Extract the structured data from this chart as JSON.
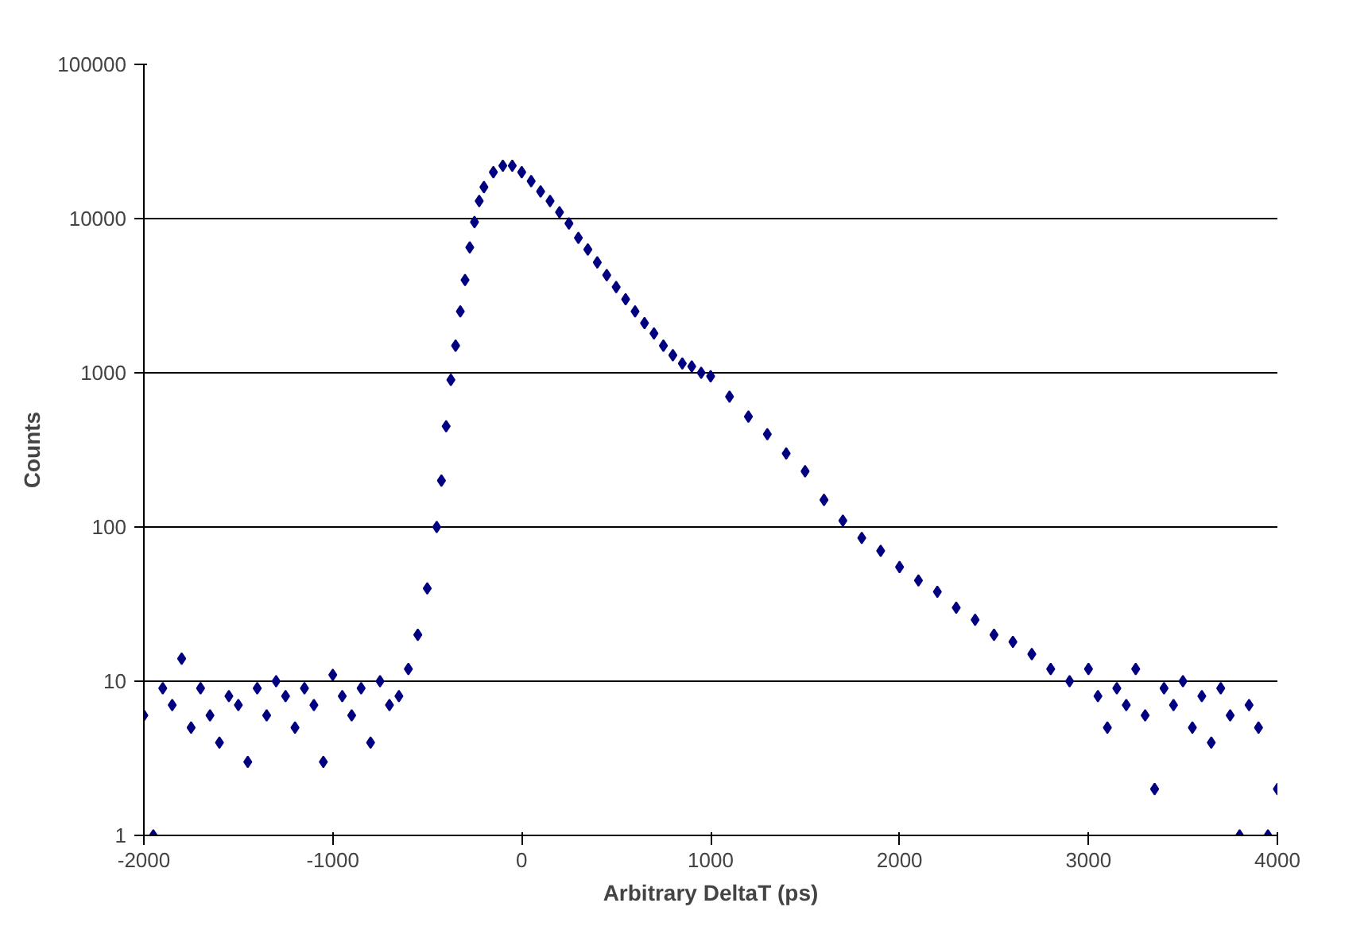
{
  "chart_data": {
    "type": "scatter",
    "xlabel": "Arbitrary DeltaT (ps)",
    "ylabel": "Counts",
    "log": "y",
    "grid": "y",
    "marker": "diamond",
    "xlim": [
      -2000,
      4000
    ],
    "xticks": [
      -2000,
      -1000,
      0,
      1000,
      2000,
      3000,
      4000
    ],
    "ylim": [
      1,
      100000
    ],
    "yticks": [
      1,
      10,
      100,
      1000,
      10000,
      100000
    ],
    "series": [
      {
        "color": "#000080",
        "x": [
          -2000,
          -1950,
          -1900,
          -1850,
          -1800,
          -1750,
          -1700,
          -1650,
          -1600,
          -1550,
          -1500,
          -1450,
          -1400,
          -1350,
          -1300,
          -1250,
          -1200,
          -1150,
          -1100,
          -1050,
          -1000,
          -950,
          -900,
          -850,
          -800,
          -750,
          -700,
          -650,
          -600,
          -550,
          -500,
          -450,
          -425,
          -400,
          -375,
          -350,
          -325,
          -300,
          -275,
          -250,
          -225,
          -200,
          -150,
          -100,
          -50,
          0,
          50,
          100,
          150,
          200,
          250,
          300,
          350,
          400,
          450,
          500,
          550,
          600,
          650,
          700,
          750,
          800,
          850,
          900,
          950,
          1000,
          1100,
          1200,
          1300,
          1400,
          1500,
          1600,
          1700,
          1800,
          1900,
          2000,
          2100,
          2200,
          2300,
          2400,
          2500,
          2600,
          2700,
          2800,
          2900,
          3000,
          3050,
          3100,
          3150,
          3200,
          3250,
          3300,
          3350,
          3400,
          3450,
          3500,
          3550,
          3600,
          3650,
          3700,
          3750,
          3800,
          3850,
          3900,
          3950,
          4000
        ],
        "values": [
          6,
          1,
          9,
          7,
          14,
          5,
          9,
          6,
          4,
          8,
          7,
          3,
          9,
          6,
          10,
          8,
          5,
          9,
          7,
          3,
          11,
          8,
          6,
          9,
          4,
          10,
          7,
          8,
          12,
          20,
          40,
          100,
          200,
          450,
          900,
          1500,
          2500,
          4000,
          6500,
          9500,
          13000,
          16000,
          20000,
          22000,
          22000,
          20000,
          17500,
          15000,
          13000,
          11000,
          9300,
          7500,
          6300,
          5200,
          4300,
          3600,
          3000,
          2500,
          2100,
          1800,
          1500,
          1300,
          1150,
          1100,
          1000,
          950,
          700,
          520,
          400,
          300,
          230,
          150,
          110,
          85,
          70,
          55,
          45,
          38,
          30,
          25,
          20,
          18,
          15,
          12,
          10,
          12,
          8,
          5,
          9,
          7,
          12,
          6,
          2,
          9,
          7,
          10,
          5,
          8,
          4,
          9,
          6,
          1,
          7,
          5,
          1,
          2
        ]
      }
    ]
  }
}
